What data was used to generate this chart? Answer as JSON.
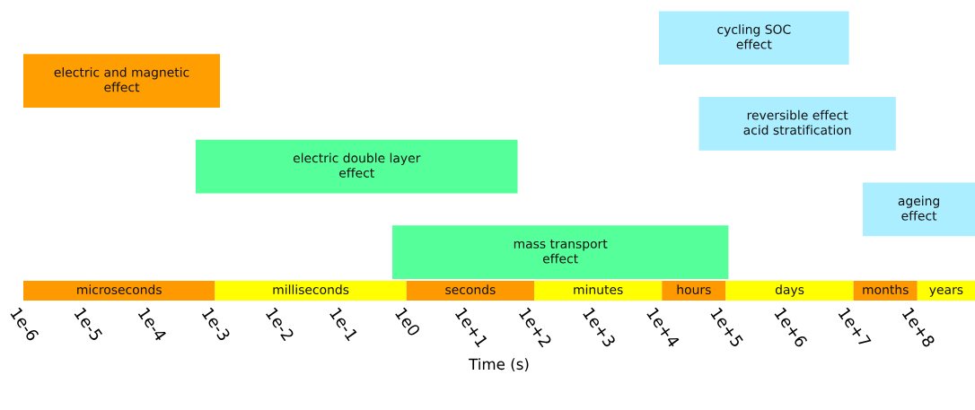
{
  "chart_data": [
    {
      "type": "bar",
      "orientation": "horizontal",
      "log": "x",
      "tick_labels": false,
      "categories": [
        null,
        null,
        null,
        null,
        null,
        null
      ],
      "values": [
        8500000,
        0.0012,
        46000000,
        55,
        790000000,
        110000
      ],
      "base": [
        9000,
        1e-06,
        38000,
        0.0005,
        14000000,
        0.6
      ],
      "colors": [
        "#aaeeff",
        "#ff9e00",
        "#aaeeff",
        "#55ff99",
        "#aaeeff",
        "#55ff99"
      ],
      "value_labels": [
        "cycling SOC\neffect",
        "electric and magnetic\neffect",
        "reversible effect\nacid stratification",
        "electric double layer\neffect",
        "ageing\neffect",
        "mass transport\neffect"
      ],
      "xlim": [
        1e-06,
        800000000.0
      ],
      "grid": false,
      "legend": false
    },
    {
      "type": "bar",
      "orientation": "horizontal",
      "log": "x",
      "xlabel": "Time (s)",
      "categories": [
        null
      ],
      "series": [
        {
          "color": "#ff9900",
          "values": [
            0.001
          ],
          "base": [
            1e-06
          ],
          "value_labels": [
            "microseconds"
          ]
        },
        {
          "color": "#ffff00",
          "values": [
            1
          ],
          "base": [
            0.001
          ],
          "value_labels": [
            "milliseconds"
          ]
        },
        {
          "color": "#ff9900",
          "values": [
            99
          ],
          "base": [
            1
          ],
          "value_labels": [
            "seconds"
          ]
        },
        {
          "color": "#ffff00",
          "values": [
            9900
          ],
          "base": [
            100
          ],
          "value_labels": [
            "minutes"
          ]
        },
        {
          "color": "#ff9900",
          "values": [
            90000
          ],
          "base": [
            10000
          ],
          "value_labels": [
            "hours"
          ]
        },
        {
          "color": "#ffff00",
          "values": [
            9900000
          ],
          "base": [
            100000
          ],
          "value_labels": [
            "days"
          ]
        },
        {
          "color": "#ff9900",
          "values": [
            90000000
          ],
          "base": [
            10000000
          ],
          "value_labels": [
            "months"
          ]
        },
        {
          "color": "#ffff00",
          "values": [
            700000000
          ],
          "base": [
            100000000
          ],
          "value_labels": [
            "years"
          ]
        }
      ],
      "xlim": [
        1e-06,
        800000000.0
      ],
      "xticks": [
        {
          "value": 1e-06,
          "label": "1e-6"
        },
        {
          "value": 1e-05,
          "label": "1e-5"
        },
        {
          "value": 0.0001,
          "label": "1e-4"
        },
        {
          "value": 0.001,
          "label": "1e-3"
        },
        {
          "value": 0.01,
          "label": "1e-2"
        },
        {
          "value": 0.1,
          "label": "1e-1"
        },
        {
          "value": 1,
          "label": "1e0"
        },
        {
          "value": 10,
          "label": "1e+1"
        },
        {
          "value": 100,
          "label": "1e+2"
        },
        {
          "value": 1000,
          "label": "1e+3"
        },
        {
          "value": 10000,
          "label": "1e+4"
        },
        {
          "value": 100000,
          "label": "1e+5"
        },
        {
          "value": 1000000,
          "label": "1e+6"
        },
        {
          "value": 10000000,
          "label": "1e+7"
        },
        {
          "value": 100000000,
          "label": "1e+8"
        }
      ],
      "grid": false,
      "legend": false
    }
  ]
}
